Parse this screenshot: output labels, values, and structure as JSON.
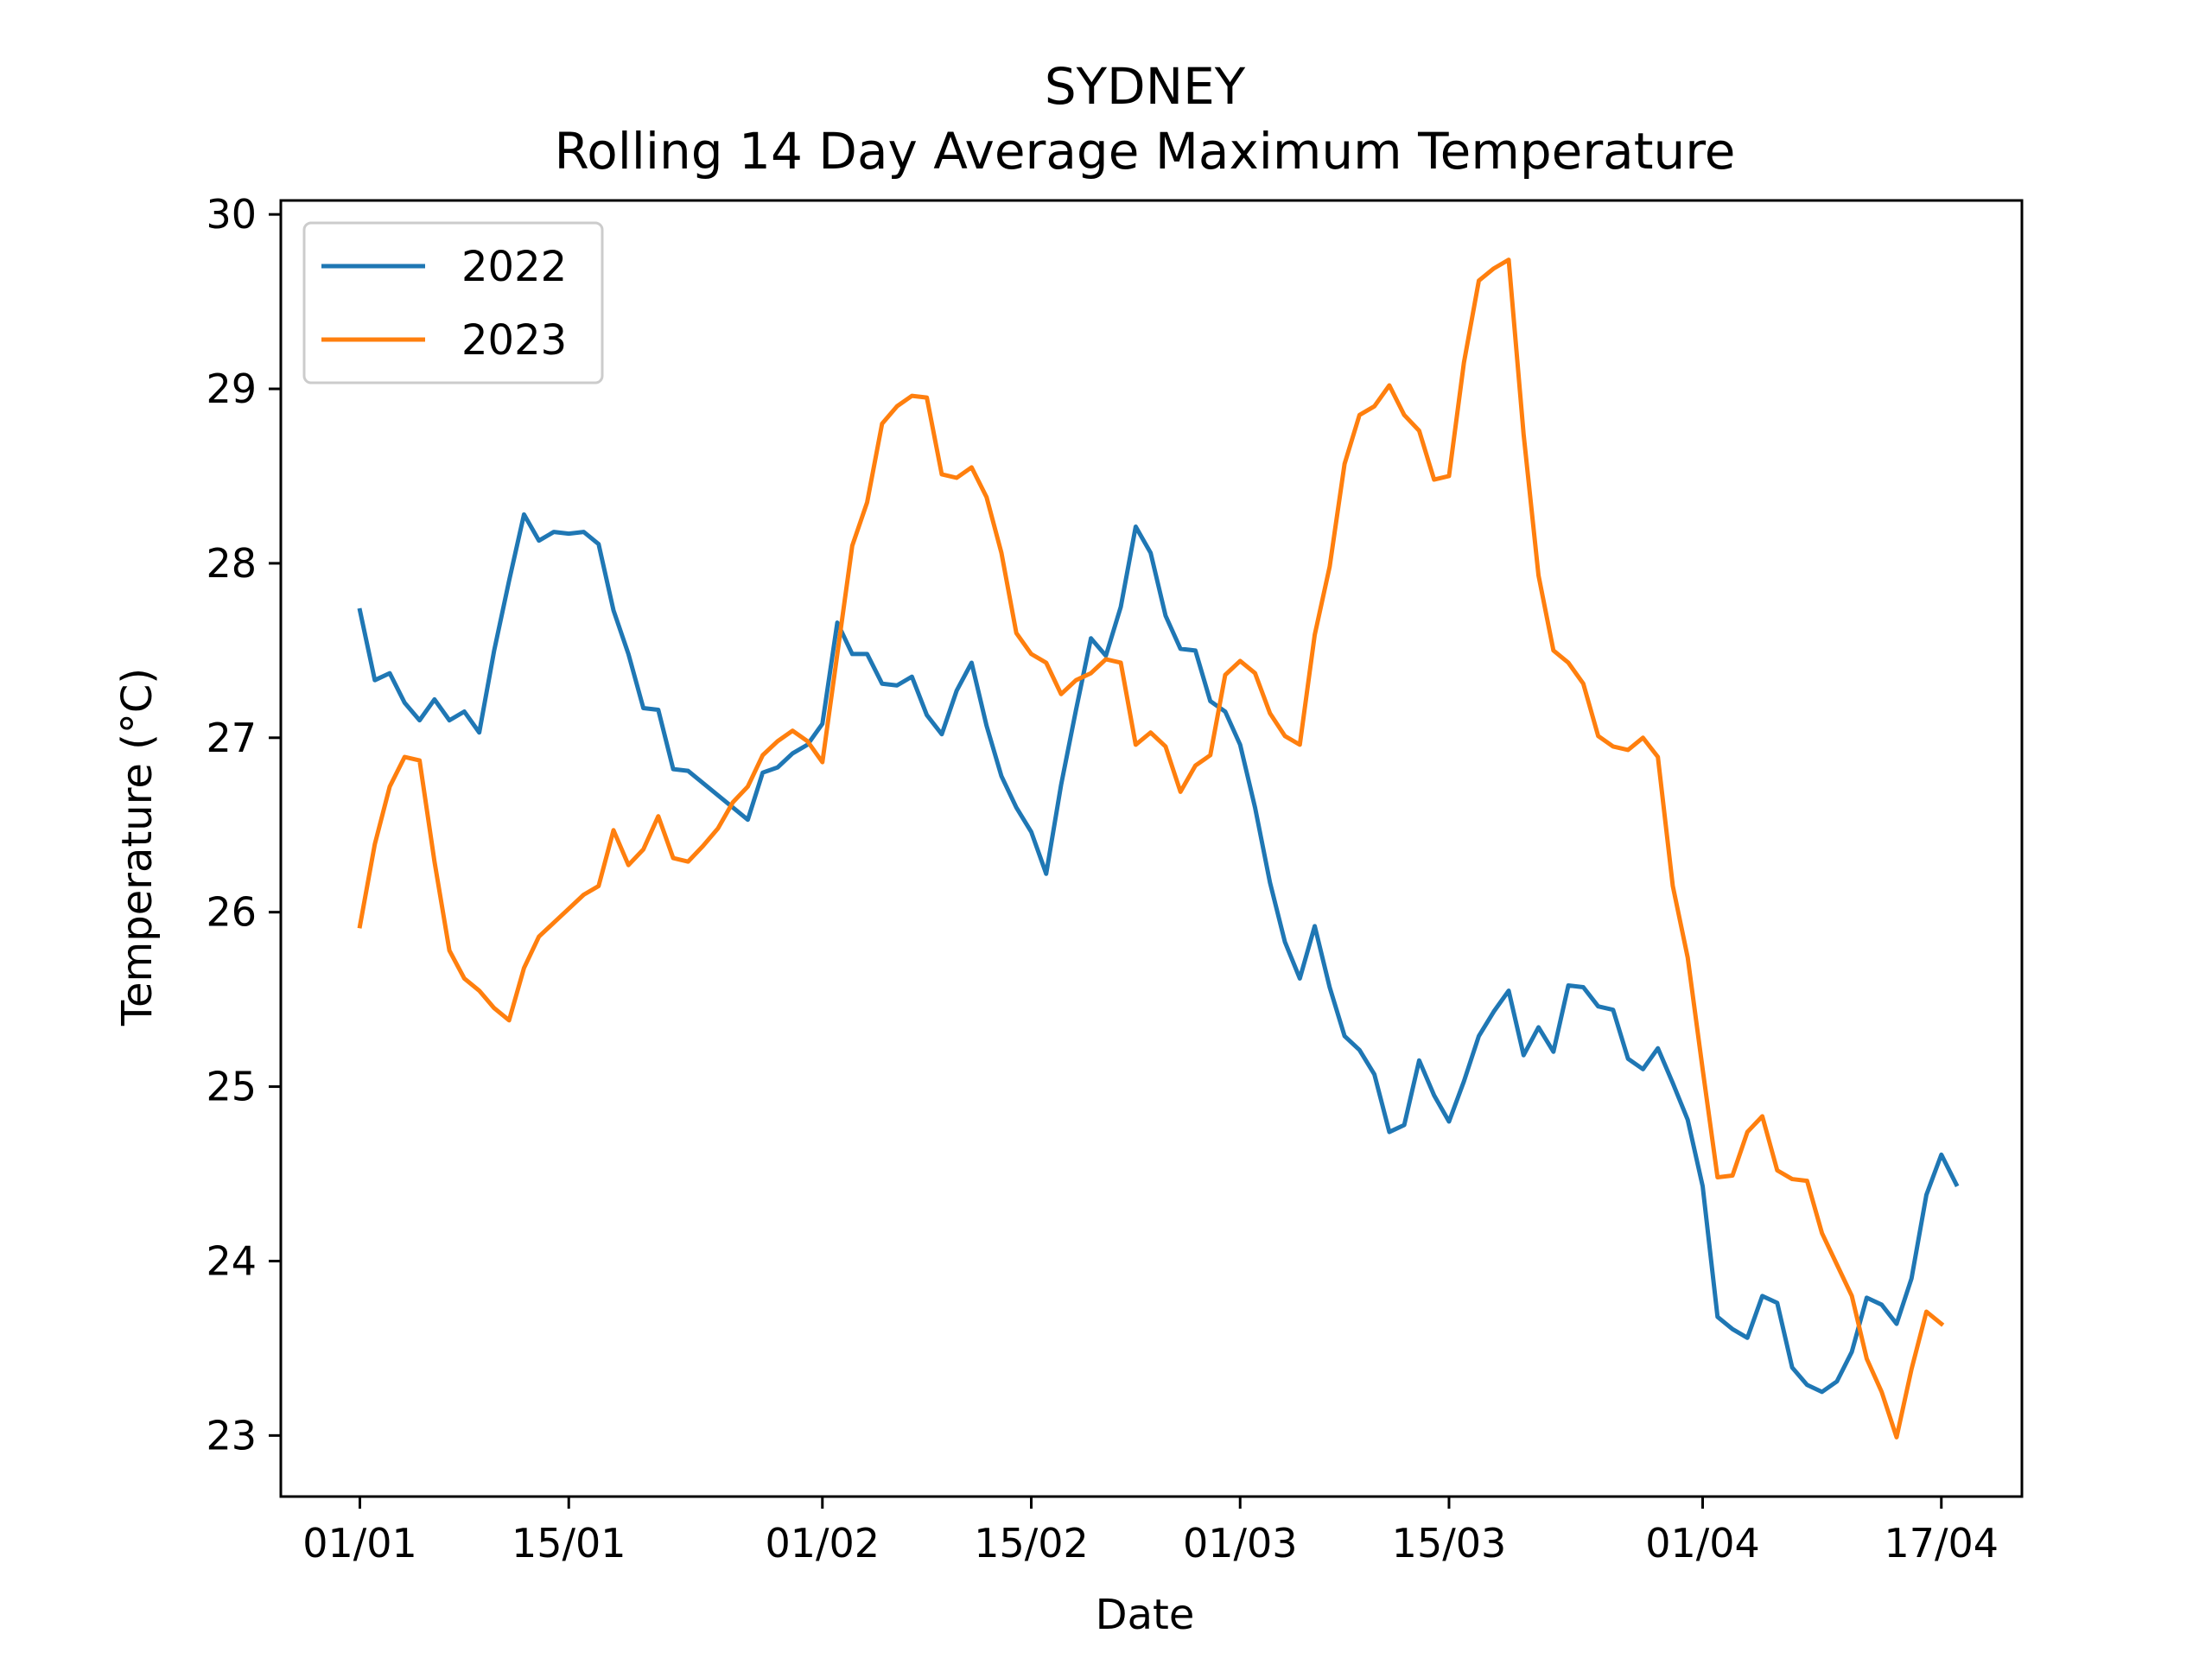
{
  "chart_data": {
    "type": "line",
    "title": "SYDNEY",
    "subtitle": "Rolling 14 Day Average Maximum Temperature",
    "xlabel": "Date",
    "ylabel": "Temperature (°C)",
    "ylim": [
      22.65,
      30.08
    ],
    "yticks": [
      23,
      24,
      25,
      26,
      27,
      28,
      29,
      30
    ],
    "xlim_day": [
      -5.3,
      111.4
    ],
    "xticks": [
      {
        "day": 0,
        "label": "01/01"
      },
      {
        "day": 14,
        "label": "15/01"
      },
      {
        "day": 31,
        "label": "01/02"
      },
      {
        "day": 45,
        "label": "15/02"
      },
      {
        "day": 59,
        "label": "01/03"
      },
      {
        "day": 73,
        "label": "15/03"
      },
      {
        "day": 90,
        "label": "01/04"
      },
      {
        "day": 106,
        "label": "17/04"
      }
    ],
    "grid": false,
    "legend_position": "upper-left",
    "series": [
      {
        "name": "2022",
        "color": "#1f77b4",
        "values": [
          27.73,
          27.33,
          27.37,
          27.2,
          27.1,
          27.22,
          27.1,
          27.15,
          27.03,
          27.5,
          27.9,
          28.28,
          28.13,
          28.18,
          28.17,
          28.18,
          28.11,
          27.73,
          27.48,
          27.17,
          27.16,
          26.82,
          26.81,
          26.74,
          26.67,
          26.6,
          26.53,
          26.8,
          26.83,
          26.91,
          26.96,
          27.08,
          27.66,
          27.48,
          27.48,
          27.31,
          27.3,
          27.35,
          27.13,
          27.02,
          27.27,
          27.43,
          27.07,
          26.78,
          26.6,
          26.46,
          26.22,
          26.73,
          27.16,
          27.57,
          27.47,
          27.75,
          28.21,
          28.06,
          27.7,
          27.51,
          27.5,
          27.21,
          27.15,
          26.96,
          26.6,
          26.17,
          25.83,
          25.62,
          25.92,
          25.57,
          25.29,
          25.21,
          25.07,
          24.74,
          24.78,
          25.15,
          24.95,
          24.8,
          25.03,
          25.29,
          25.43,
          25.55,
          25.18,
          25.34,
          25.2,
          25.58,
          25.57,
          25.46,
          25.44,
          25.16,
          25.1,
          25.22,
          25.02,
          24.81,
          24.43,
          23.68,
          23.61,
          23.56,
          23.8,
          23.76,
          23.39,
          23.29,
          23.25,
          23.31,
          23.48,
          23.79,
          23.75,
          23.64,
          23.9,
          24.38,
          24.61,
          24.44
        ]
      },
      {
        "name": "2023",
        "color": "#ff7f0e",
        "values": [
          25.92,
          26.39,
          26.72,
          26.89,
          26.87,
          26.29,
          25.78,
          25.62,
          25.55,
          25.45,
          25.38,
          25.68,
          25.86,
          25.94,
          26.02,
          26.1,
          26.15,
          26.47,
          26.27,
          26.36,
          26.55,
          26.31,
          26.29,
          26.38,
          26.48,
          26.63,
          26.72,
          26.9,
          26.98,
          27.04,
          26.98,
          26.86,
          27.48,
          28.1,
          28.35,
          28.8,
          28.9,
          28.96,
          28.95,
          28.51,
          28.49,
          28.55,
          28.38,
          28.06,
          27.6,
          27.48,
          27.43,
          27.25,
          27.33,
          27.37,
          27.45,
          27.43,
          26.96,
          27.03,
          26.95,
          26.69,
          26.84,
          26.9,
          27.36,
          27.44,
          27.37,
          27.14,
          27.01,
          26.96,
          27.59,
          27.98,
          28.57,
          28.85,
          28.9,
          29.02,
          28.85,
          28.76,
          28.48,
          28.5,
          29.15,
          29.62,
          29.69,
          29.74,
          28.74,
          27.93,
          27.5,
          27.43,
          27.31,
          27.01,
          26.95,
          26.93,
          27.0,
          26.89,
          26.15,
          25.74,
          25.1,
          24.48,
          24.49,
          24.74,
          24.83,
          24.52,
          24.47,
          24.46,
          24.16,
          23.98,
          23.8,
          23.44,
          23.25,
          22.99,
          23.38,
          23.71,
          23.64
        ]
      }
    ]
  }
}
